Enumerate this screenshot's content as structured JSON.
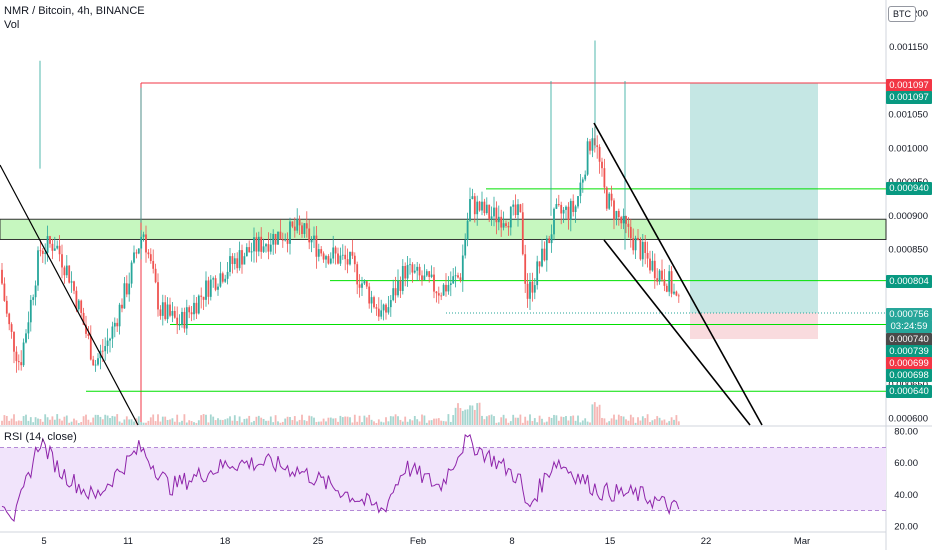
{
  "header": {
    "symbol_line": "NMR / Bitcoin, 4h, BINANCE",
    "vol_label": "Vol",
    "rsi_label": "RSI (14, close)",
    "currency_button": "BTC"
  },
  "colors": {
    "up": "#26a69a",
    "down": "#ef5350",
    "zone_fill": "#b9f6b0",
    "hline": "#00e000",
    "red_line": "#f23645",
    "target_fill": "#b2dfdb",
    "stop_fill": "#f8d7da",
    "rsi_line": "#8e24aa",
    "rsi_band": "#f1e4fb"
  },
  "chart_data": {
    "type": "candlestick",
    "price_axis": {
      "ticks": [
        "0.001200",
        "0.001150",
        "0.001050",
        "0.001000",
        "0.000950",
        "0.000900",
        "0.000850",
        "0.000650",
        "0.000600"
      ],
      "range": [
        0.00059,
        0.00122
      ]
    },
    "time_axis": {
      "labels": [
        "5",
        "11",
        "18",
        "25",
        "Feb",
        "8",
        "15",
        "22",
        "Mar"
      ]
    },
    "price_badges": [
      {
        "label": "0.001097",
        "color": "#f23645"
      },
      {
        "label": "0.001097",
        "color": "#089981"
      },
      {
        "label": "0.000940",
        "color": "#089981"
      },
      {
        "label": "0.000804",
        "color": "#089981"
      },
      {
        "label": "0.000756",
        "color": "#26a69a"
      },
      {
        "label": "03:24:59",
        "color": "#26a69a"
      },
      {
        "label": "0.000740",
        "color": "#4a4a4a"
      },
      {
        "label": "0.000739",
        "color": "#089981"
      },
      {
        "label": "0.000699",
        "color": "#f23645"
      },
      {
        "label": "0.000698",
        "color": "#089981"
      },
      {
        "label": "0.000640",
        "color": "#089981"
      }
    ],
    "resistance_zone": [
      0.000865,
      0.000895
    ],
    "horizontal_levels": [
      0.00094,
      0.000804,
      0.000756,
      0.000739,
      0.00064
    ],
    "red_level": 0.001097,
    "long_position": {
      "entry": 0.000756,
      "target": 0.001097,
      "stop": 0.000739
    },
    "rsi_axis": {
      "ticks": [
        "80.00",
        "60.00",
        "40.00",
        "20.00"
      ],
      "range": [
        17,
        83
      ],
      "band": [
        30,
        70
      ]
    }
  }
}
